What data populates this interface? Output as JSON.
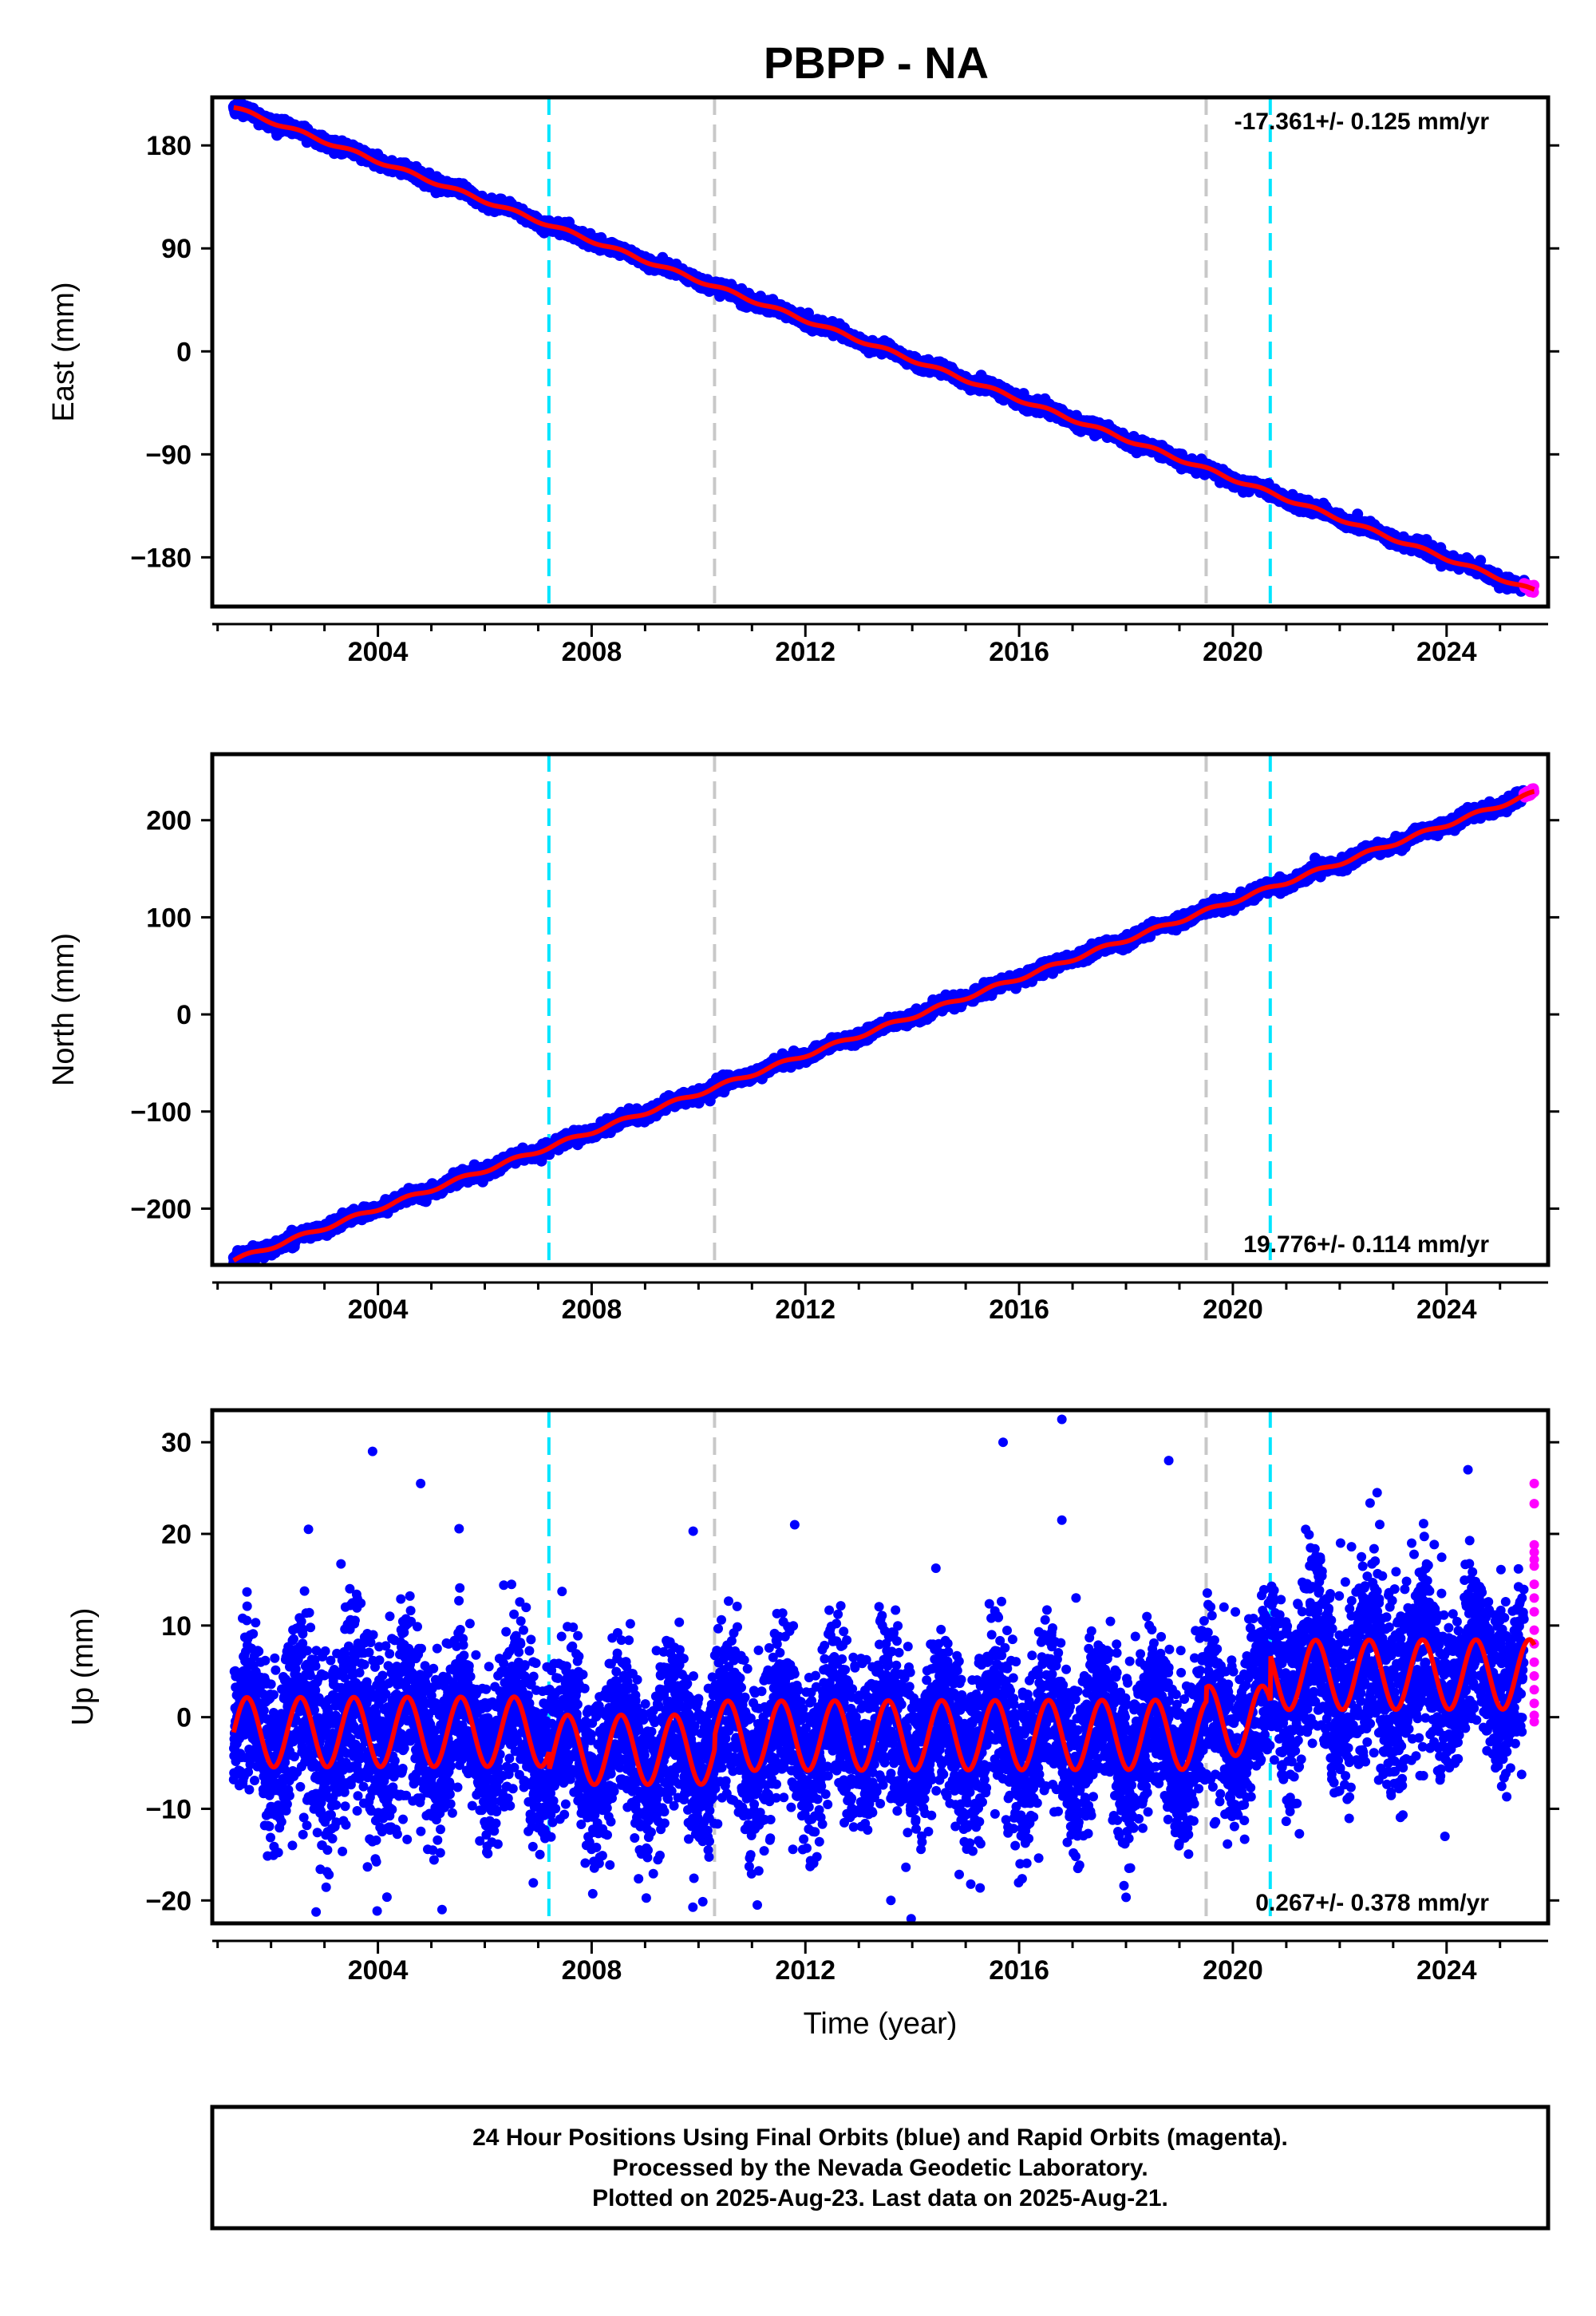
{
  "title": "PBPP - NA",
  "colors": {
    "final_orbits": "#0000ff",
    "rapid_orbits": "#ff00ff",
    "model": "#ff0000",
    "marker_cyan": "#00e5ff",
    "marker_gray": "#c8c8c8",
    "frame": "#000000"
  },
  "footer": {
    "line1": "24 Hour Positions Using Final Orbits (blue) and Rapid Orbits (magenta).",
    "line2": "Processed by the Nevada Geodetic Laboratory.",
    "line3": "Plotted on 2025-Aug-23. Last data on 2025-Aug-21."
  },
  "chart_data": [
    {
      "type": "scatter",
      "component": "East",
      "ylabel": "East (mm)",
      "xlabel": "",
      "xlim": [
        2000.9,
        2025.9
      ],
      "ylim": [
        -223,
        222
      ],
      "xticks": [
        2004,
        2008,
        2012,
        2016,
        2020,
        2024
      ],
      "xtick_labels": [
        "2004",
        "2008",
        "2012",
        "2016",
        "2020",
        "2024"
      ],
      "yticks": [
        180,
        90,
        0,
        -90,
        -180
      ],
      "ytick_labels": [
        "180",
        "90",
        "0",
        "−90",
        "−180"
      ],
      "rate_text": "-17.361+/- 0.125 mm/yr",
      "rate_position": "top-right",
      "rate_mm_per_yr": -17.361,
      "value_at_2013": 10,
      "seasonal_amplitude_mm": 1.5,
      "scatter_mm": 2.5,
      "start_year": 2001.3,
      "end_year": 2025.64,
      "rapid_start_year": 2025.45,
      "vertical_markers": [
        {
          "x": 2007.2,
          "color": "cyan"
        },
        {
          "x": 2010.3,
          "color": "gray"
        },
        {
          "x": 2019.5,
          "color": "gray"
        },
        {
          "x": 2020.7,
          "color": "cyan"
        }
      ]
    },
    {
      "type": "scatter",
      "component": "North",
      "ylabel": "North (mm)",
      "xlabel": "",
      "xlim": [
        2000.9,
        2025.9
      ],
      "ylim": [
        -258,
        268
      ],
      "xticks": [
        2004,
        2008,
        2012,
        2016,
        2020,
        2024
      ],
      "xtick_labels": [
        "2004",
        "2008",
        "2012",
        "2016",
        "2020",
        "2024"
      ],
      "yticks": [
        200,
        100,
        0,
        -100,
        -200
      ],
      "ytick_labels": [
        "200",
        "100",
        "0",
        "−100",
        "−200"
      ],
      "rate_text": "19.776+/- 0.114 mm/yr",
      "rate_position": "bottom-right",
      "rate_mm_per_yr": 19.776,
      "value_at_2013": -22,
      "seasonal_amplitude_mm": 2,
      "scatter_mm": 3,
      "start_year": 2001.3,
      "end_year": 2025.64,
      "rapid_start_year": 2025.45,
      "vertical_markers": [
        {
          "x": 2007.2,
          "color": "cyan"
        },
        {
          "x": 2010.3,
          "color": "gray"
        },
        {
          "x": 2019.5,
          "color": "gray"
        },
        {
          "x": 2020.7,
          "color": "cyan"
        }
      ]
    },
    {
      "type": "scatter",
      "component": "Up",
      "ylabel": "Up (mm)",
      "xlabel": "Time (year)",
      "xlim": [
        2000.9,
        2025.9
      ],
      "ylim": [
        -22.5,
        33.5
      ],
      "xticks": [
        2004,
        2008,
        2012,
        2016,
        2020,
        2024
      ],
      "xtick_labels": [
        "2004",
        "2008",
        "2012",
        "2016",
        "2020",
        "2024"
      ],
      "yticks": [
        30,
        20,
        10,
        0,
        -10,
        -20
      ],
      "ytick_labels": [
        "30",
        "20",
        "10",
        "0",
        "−10",
        "−20"
      ],
      "rate_text": "0.267+/- 0.378 mm/yr",
      "rate_position": "bottom-right",
      "rate_mm_per_yr": 0.267,
      "seasonal_amplitude_mm": 3.8,
      "scatter_mm": 4.5,
      "start_year": 2001.3,
      "end_year": 2025.64,
      "rapid_start_year": 2025.45,
      "segment_offsets": [
        {
          "from": 2001.3,
          "to": 2007.2,
          "mm": -1.5
        },
        {
          "from": 2007.2,
          "to": 2010.3,
          "mm": -3.5
        },
        {
          "from": 2010.3,
          "to": 2019.5,
          "mm": -2.0
        },
        {
          "from": 2019.5,
          "to": 2020.7,
          "mm": -0.5
        },
        {
          "from": 2020.7,
          "to": 2025.64,
          "mm": 4.5
        }
      ],
      "outliers": [
        {
          "x": 2003.9,
          "y": 29
        },
        {
          "x": 2004.8,
          "y": 25.5
        },
        {
          "x": 2002.7,
          "y": 20.5
        },
        {
          "x": 2009.9,
          "y": 20.3
        },
        {
          "x": 2011.8,
          "y": 21
        },
        {
          "x": 2015.7,
          "y": 30
        },
        {
          "x": 2016.8,
          "y": 32.5
        },
        {
          "x": 2016.8,
          "y": 21.5
        },
        {
          "x": 2018.8,
          "y": 28
        },
        {
          "x": 2022.7,
          "y": 24.5
        },
        {
          "x": 2024.4,
          "y": 27
        },
        {
          "x": 2005.2,
          "y": -21
        },
        {
          "x": 2011.1,
          "y": -20.5
        },
        {
          "x": 2013.6,
          "y": -20
        },
        {
          "x": 2017.1,
          "y": -16.5
        },
        {
          "x": 2002.4,
          "y": -14
        }
      ],
      "rapid_points": [
        25.5,
        23.3,
        18.8,
        18.0,
        17.2,
        16.5,
        14.5,
        13.0,
        11.5,
        9.5,
        8.0,
        6.0,
        4.5,
        3.0,
        1.5,
        0.2,
        -0.5
      ],
      "vertical_markers": [
        {
          "x": 2007.2,
          "color": "cyan"
        },
        {
          "x": 2010.3,
          "color": "gray"
        },
        {
          "x": 2019.5,
          "color": "gray"
        },
        {
          "x": 2020.7,
          "color": "cyan"
        }
      ]
    }
  ]
}
